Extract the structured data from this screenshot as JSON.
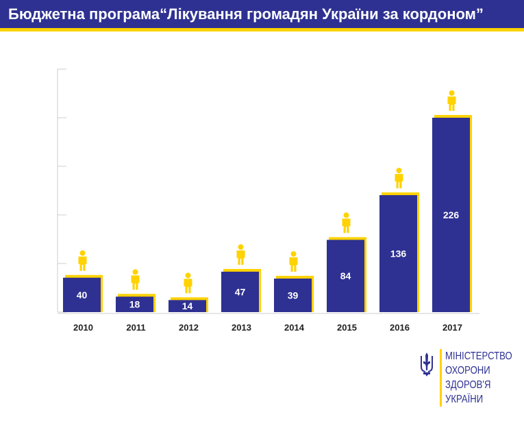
{
  "header": {
    "title": "Бюджетна програма“Лікування громадян України  за кордоном”"
  },
  "chart_data": {
    "type": "bar",
    "categories": [
      "2010",
      "2011",
      "2012",
      "2013",
      "2014",
      "2015",
      "2016",
      "2017"
    ],
    "values": [
      40,
      18,
      14,
      47,
      39,
      84,
      136,
      226
    ],
    "title": "Бюджетна програма“Лікування громадян України  за кордоном”",
    "xlabel": "",
    "ylabel": "",
    "ylim": [
      0,
      250
    ],
    "grid": false,
    "legend": "none",
    "bar_icon": "person-icon",
    "colors": {
      "bar": "#2e3192",
      "accent": "#ffd200",
      "label": "#ffffff",
      "axis": "#cccccc"
    }
  },
  "logo": {
    "lines": [
      "МІНІСТЕРСТВО",
      "ОХОРОНИ",
      "ЗДОРОВ'Я",
      "УКРАЇНИ"
    ],
    "icon": "trident-icon"
  }
}
